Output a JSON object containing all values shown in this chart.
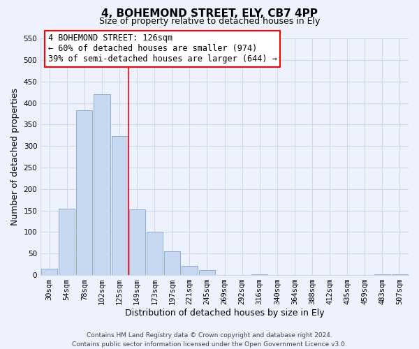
{
  "title": "4, BOHEMOND STREET, ELY, CB7 4PP",
  "subtitle": "Size of property relative to detached houses in Ely",
  "xlabel": "Distribution of detached houses by size in Ely",
  "ylabel": "Number of detached properties",
  "bar_labels": [
    "30sqm",
    "54sqm",
    "78sqm",
    "102sqm",
    "125sqm",
    "149sqm",
    "173sqm",
    "197sqm",
    "221sqm",
    "245sqm",
    "269sqm",
    "292sqm",
    "316sqm",
    "340sqm",
    "364sqm",
    "388sqm",
    "412sqm",
    "435sqm",
    "459sqm",
    "483sqm",
    "507sqm"
  ],
  "bar_values": [
    15,
    155,
    383,
    420,
    323,
    153,
    101,
    55,
    22,
    12,
    0,
    0,
    2,
    0,
    0,
    0,
    0,
    0,
    0,
    2,
    2
  ],
  "bar_color": "#c8d8f0",
  "bar_edge_color": "#8aaed4",
  "annotation_line1": "4 BOHEMOND STREET: 126sqm",
  "annotation_line2": "← 60% of detached houses are smaller (974)",
  "annotation_line3": "39% of semi-detached houses are larger (644) →",
  "vline_x": 4.5,
  "ylim": [
    0,
    550
  ],
  "yticks": [
    0,
    50,
    100,
    150,
    200,
    250,
    300,
    350,
    400,
    450,
    500,
    550
  ],
  "footer_text": "Contains HM Land Registry data © Crown copyright and database right 2024.\nContains public sector information licensed under the Open Government Licence v3.0.",
  "bg_color": "#eef2ff",
  "plot_bg_color": "#eef2ff",
  "grid_color": "#d0d8e8",
  "title_fontsize": 11,
  "subtitle_fontsize": 9,
  "axis_label_fontsize": 9,
  "tick_fontsize": 7.5,
  "annotation_fontsize": 8.5,
  "footer_fontsize": 6.5
}
